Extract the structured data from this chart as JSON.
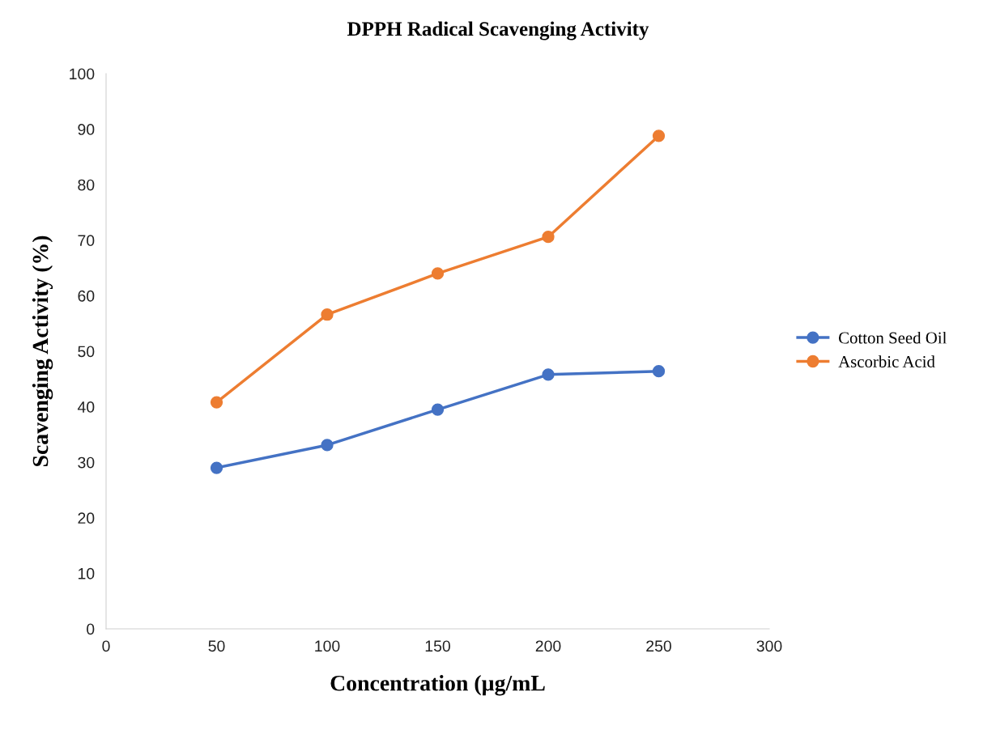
{
  "chart_data": {
    "type": "line",
    "title": "DPPH Radical Scavenging Activity",
    "xlabel": "Concentration (µg/mL",
    "ylabel": "Scavenging Activity (%)",
    "x": [
      50,
      100,
      150,
      200,
      250
    ],
    "series": [
      {
        "name": "Cotton Seed Oil",
        "color": "#4472c4",
        "values": [
          29.0,
          33.1,
          39.5,
          45.8,
          46.4
        ]
      },
      {
        "name": "Ascorbic Acid",
        "color": "#ed7d31",
        "values": [
          40.8,
          56.6,
          64.0,
          70.6,
          88.8
        ]
      }
    ],
    "xlim": [
      0,
      300
    ],
    "xticks": [
      0,
      50,
      100,
      150,
      200,
      250,
      300
    ],
    "ylim": [
      0,
      100
    ],
    "yticks": [
      0,
      10,
      20,
      30,
      40,
      50,
      60,
      70,
      80,
      90,
      100
    ],
    "grid": false,
    "legend": "right",
    "marker": "circle",
    "line_style": "solid"
  }
}
